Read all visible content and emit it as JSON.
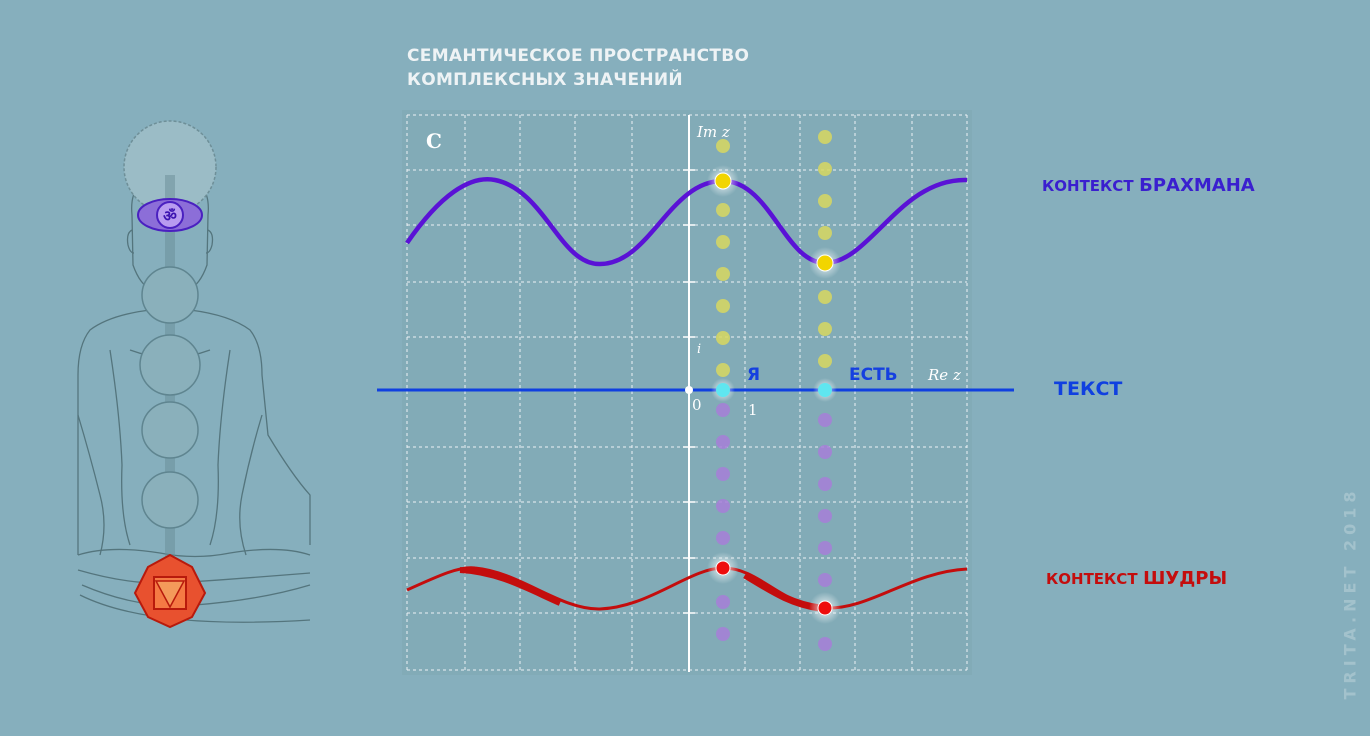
{
  "title": {
    "line1": "СЕМАНТИЧЕСКОЕ ПРОСТРАНСТВО",
    "line2": "КОМПЛЕКСНЫХ ЗНАЧЕНИЙ"
  },
  "plane": {
    "set_label": "C",
    "imag_axis_label": "Im z",
    "real_axis_label": "Re z",
    "unit_i": "i",
    "origin": "0",
    "unit_one": "1"
  },
  "words": {
    "ya": "Я",
    "est": "ЕСТЬ"
  },
  "contexts": {
    "brahman_small": "КОНТЕКСТ",
    "brahman_big": "БРАХМАНА",
    "text": "ТЕКСТ",
    "shudra_small": "КОНТЕКСТ",
    "shudra_big": "ШУДРЫ"
  },
  "watermark": "TRITA.NET 2018",
  "colors": {
    "background": "#86afbd",
    "brahman": "#5a12d6",
    "text_axis": "#1040e0",
    "shudra": "#c40d0d",
    "upper_dots": "#d8d760",
    "lower_dots": "#a77ed8",
    "word_point": "#5fe6f0"
  },
  "icons": [
    "ajna-chakra-icon",
    "muladhara-chakra-icon",
    "meditating-figure-illustration"
  ]
}
